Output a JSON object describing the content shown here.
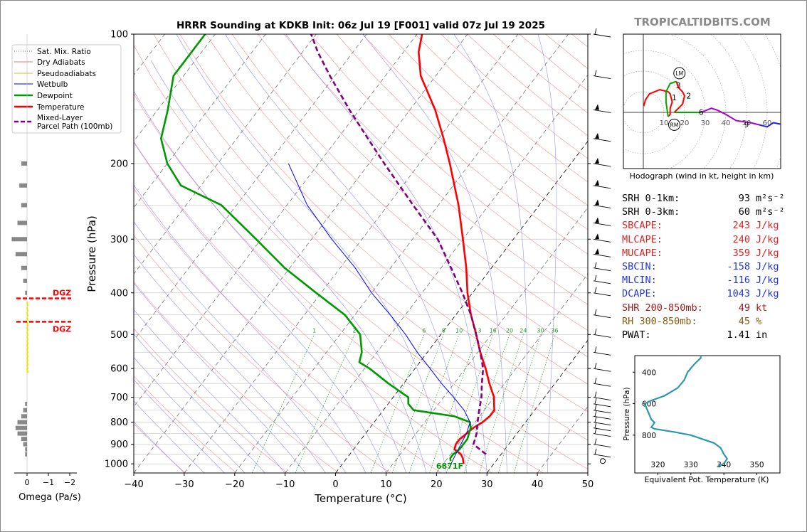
{
  "title": "HRRR Sounding at KDKB Init: 06z Jul 19 [F001] valid 07z Jul 19 2025",
  "watermark": "TROPICALTIDBITS.COM",
  "colors": {
    "temperature": "#ff0000",
    "dewpoint": "#009900",
    "wetbulb": "#0000ff",
    "parcel": "#800080",
    "dry_adiabat": "#e87b7b",
    "moist_adiabat": "#7b7be8",
    "mixing_ratio": "#2a9a2a",
    "theta_e": "#2c98b0"
  },
  "chart_data": {
    "type": "line",
    "xlabel": "Temperature (°C)",
    "ylabel": "Pressure (hPa)",
    "xlim": [
      -40,
      50
    ],
    "ylim": [
      1050,
      100
    ],
    "y_scale": "log",
    "skew": true,
    "x_ticks": [
      "−40",
      "−30",
      "−20",
      "−10",
      "0",
      "10",
      "20",
      "30",
      "40",
      "50"
    ],
    "y_ticks": [
      "100",
      "200",
      "300",
      "400",
      "500",
      "600",
      "700",
      "800",
      "900",
      "1000"
    ],
    "legend": {
      "position": "outside-left",
      "entries": [
        "Sat. Mix. Ratio",
        "Dry Adiabats",
        "Pseudoadiabats",
        "Wetbulb",
        "Dewpoint",
        "Temperature",
        "Mixed-Layer\nParcel Path (100mb)"
      ]
    },
    "mixing_ratio_labels": [
      "1",
      "2",
      "6",
      "8",
      "10",
      "13",
      "16",
      "20",
      "24",
      "30",
      "36"
    ],
    "annotation": "6871F",
    "series": [
      {
        "name": "Temperature",
        "points": [
          [
            1000,
            24
          ],
          [
            970,
            23
          ],
          [
            950,
            22
          ],
          [
            925,
            20
          ],
          [
            900,
            19.5
          ],
          [
            875,
            19.5
          ],
          [
            850,
            20
          ],
          [
            825,
            20.5
          ],
          [
            800,
            21.5
          ],
          [
            775,
            22
          ],
          [
            750,
            22
          ],
          [
            725,
            21
          ],
          [
            700,
            20
          ],
          [
            650,
            17
          ],
          [
            600,
            14
          ],
          [
            550,
            10.5
          ],
          [
            500,
            7
          ],
          [
            450,
            3
          ],
          [
            400,
            -1
          ],
          [
            350,
            -5
          ],
          [
            300,
            -10
          ],
          [
            250,
            -16
          ],
          [
            200,
            -24
          ],
          [
            175,
            -29
          ],
          [
            150,
            -35
          ],
          [
            125,
            -43
          ],
          [
            110,
            -47
          ],
          [
            100,
            -49
          ]
        ]
      },
      {
        "name": "Dewpoint",
        "points": [
          [
            985,
            21
          ],
          [
            970,
            20.5
          ],
          [
            950,
            20.5
          ],
          [
            925,
            21
          ],
          [
            900,
            21
          ],
          [
            875,
            21
          ],
          [
            850,
            20.5
          ],
          [
            825,
            20
          ],
          [
            800,
            19
          ],
          [
            775,
            15
          ],
          [
            750,
            6
          ],
          [
            725,
            4
          ],
          [
            700,
            3
          ],
          [
            650,
            -3
          ],
          [
            600,
            -9
          ],
          [
            580,
            -12
          ],
          [
            550,
            -13
          ],
          [
            500,
            -16
          ],
          [
            450,
            -22
          ],
          [
            400,
            -31
          ],
          [
            350,
            -41
          ],
          [
            300,
            -51
          ],
          [
            250,
            -63
          ],
          [
            225,
            -74
          ],
          [
            200,
            -80
          ],
          [
            175,
            -85
          ],
          [
            150,
            -88
          ],
          [
            125,
            -92
          ],
          [
            100,
            -92
          ]
        ]
      },
      {
        "name": "Wetbulb",
        "points": [
          [
            1000,
            21.5
          ],
          [
            950,
            21
          ],
          [
            900,
            20.5
          ],
          [
            850,
            20
          ],
          [
            800,
            19
          ],
          [
            750,
            16
          ],
          [
            700,
            12
          ],
          [
            650,
            7.5
          ],
          [
            600,
            3
          ],
          [
            550,
            -2
          ],
          [
            500,
            -7
          ],
          [
            450,
            -13
          ],
          [
            400,
            -20
          ],
          [
            350,
            -27
          ],
          [
            300,
            -36
          ],
          [
            250,
            -46
          ],
          [
            200,
            -56
          ]
        ]
      },
      {
        "name": "Mixed-Layer\nParcel Path (100mb)",
        "points": [
          [
            950,
            27
          ],
          [
            925,
            25
          ],
          [
            900,
            23
          ],
          [
            850,
            22
          ],
          [
            800,
            20.5
          ],
          [
            750,
            19
          ],
          [
            700,
            17.5
          ],
          [
            650,
            15.5
          ],
          [
            600,
            13.5
          ],
          [
            550,
            10.5
          ],
          [
            500,
            7
          ],
          [
            450,
            3
          ],
          [
            400,
            -2
          ],
          [
            350,
            -8
          ],
          [
            300,
            -15
          ],
          [
            250,
            -25
          ],
          [
            200,
            -37
          ],
          [
            175,
            -44
          ],
          [
            150,
            -52
          ],
          [
            125,
            -61
          ],
          [
            110,
            -67
          ],
          [
            100,
            -71
          ]
        ]
      }
    ],
    "omega_panel": {
      "xlabel": "Omega (Pa/s)",
      "x_ticks": [
        "0",
        "−1",
        "−2"
      ],
      "dgz_label": "DGZ",
      "dgz_bounds_hPa": [
        412,
        467
      ]
    },
    "hodograph": {
      "caption": "Hodograph (wind in kt, height in km)",
      "ring_labels": [
        "10",
        "20",
        "30",
        "40",
        "50",
        "60"
      ],
      "height_labels": [
        "1",
        "2",
        "3",
        "6",
        "9"
      ],
      "markers": [
        "LM",
        "RM"
      ]
    },
    "theta_e_panel": {
      "xlabel": "Equivalent Pot. Temperature (K)",
      "ylabel": "Pressure (hPa)",
      "x_ticks": [
        "320",
        "330",
        "340",
        "350"
      ],
      "y_ticks": [
        "400",
        "600",
        "800"
      ],
      "points": [
        [
          1000,
          338
        ],
        [
          980,
          340
        ],
        [
          950,
          341
        ],
        [
          920,
          340
        ],
        [
          880,
          339
        ],
        [
          850,
          337
        ],
        [
          800,
          330
        ],
        [
          780,
          325
        ],
        [
          760,
          319
        ],
        [
          750,
          318
        ],
        [
          720,
          319
        ],
        [
          700,
          318
        ],
        [
          650,
          317
        ],
        [
          600,
          316
        ],
        [
          580,
          318
        ],
        [
          550,
          322
        ],
        [
          500,
          326
        ],
        [
          450,
          328
        ],
        [
          400,
          329
        ],
        [
          350,
          331
        ],
        [
          310,
          333
        ],
        [
          300,
          333
        ]
      ]
    }
  },
  "indices": [
    {
      "label": "SRH 0-1km:",
      "value": "93",
      "unit": "m²s⁻²",
      "color": "#000000"
    },
    {
      "label": "SRH 0-3km:",
      "value": "60",
      "unit": "m²s⁻²",
      "color": "#000000"
    },
    {
      "label": "SBCAPE:",
      "value": "243",
      "unit": "J/kg",
      "color": "#dd2222"
    },
    {
      "label": "MLCAPE:",
      "value": "240",
      "unit": "J/kg",
      "color": "#dd2222"
    },
    {
      "label": "MUCAPE:",
      "value": "359",
      "unit": "J/kg",
      "color": "#dd2222"
    },
    {
      "label": "SBCIN:",
      "value": "-158",
      "unit": "J/kg",
      "color": "#2233dd"
    },
    {
      "label": "MLCIN:",
      "value": "-116",
      "unit": "J/kg",
      "color": "#2233dd"
    },
    {
      "label": "DCAPE:",
      "value": "1043",
      "unit": "J/kg",
      "color": "#2233dd"
    },
    {
      "label": "SHR 200-850mb:",
      "value": "49",
      "unit": "kt",
      "color": "#a01818"
    },
    {
      "label": "RH 300-850mb:",
      "value": "45",
      "unit": "%",
      "color": "#8a5a10"
    },
    {
      "label": "PWAT:",
      "value": "1.41",
      "unit": "in",
      "color": "#000000"
    }
  ]
}
